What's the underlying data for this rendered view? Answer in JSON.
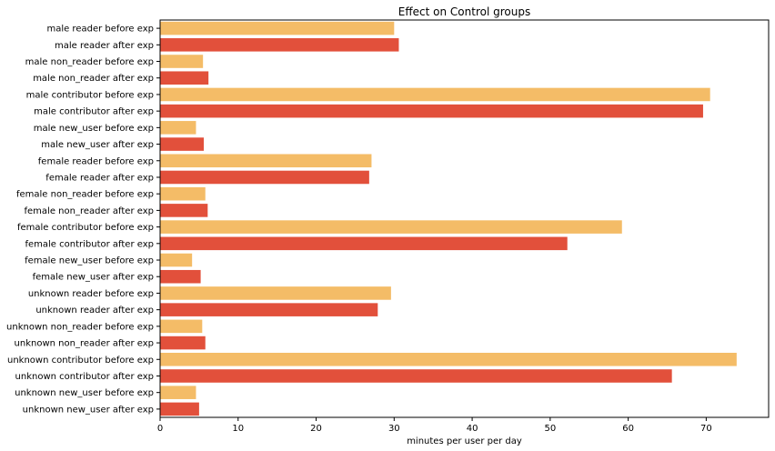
{
  "colors": {
    "before": "#f4bc67",
    "after": "#e2503b",
    "axis": "#000000",
    "background": "#ffffff"
  },
  "chart_data": {
    "type": "bar",
    "orientation": "horizontal",
    "title": "Effect on Control groups",
    "xlabel": "minutes per user per day",
    "ylabel": "",
    "xlim": [
      0,
      78
    ],
    "xticks": [
      0,
      10,
      20,
      30,
      40,
      50,
      60,
      70
    ],
    "grid": false,
    "categories": [
      "male reader before exp",
      "male reader after exp",
      "male non_reader before exp",
      "male non_reader after exp",
      "male contributor before exp",
      "male contributor after exp",
      "male new_user before exp",
      "male new_user after exp",
      "female reader before exp",
      "female reader after exp",
      "female non_reader before exp",
      "female non_reader after exp",
      "female contributor before exp",
      "female contributor after exp",
      "female new_user before exp",
      "female new_user after exp",
      "unknown reader before exp",
      "unknown reader after exp",
      "unknown non_reader before exp",
      "unknown non_reader after exp",
      "unknown contributor before exp",
      "unknown contributor after exp",
      "unknown new_user before exp",
      "unknown new_user after exp"
    ],
    "values": [
      30.0,
      30.6,
      5.5,
      6.2,
      70.5,
      69.6,
      4.6,
      5.6,
      27.1,
      26.8,
      5.8,
      6.1,
      59.2,
      52.2,
      4.1,
      5.2,
      29.6,
      27.9,
      5.4,
      5.8,
      73.9,
      65.6,
      4.6,
      5.0
    ],
    "phase": [
      "before",
      "after",
      "before",
      "after",
      "before",
      "after",
      "before",
      "after",
      "before",
      "after",
      "before",
      "after",
      "before",
      "after",
      "before",
      "after",
      "before",
      "after",
      "before",
      "after",
      "before",
      "after",
      "before",
      "after"
    ]
  }
}
